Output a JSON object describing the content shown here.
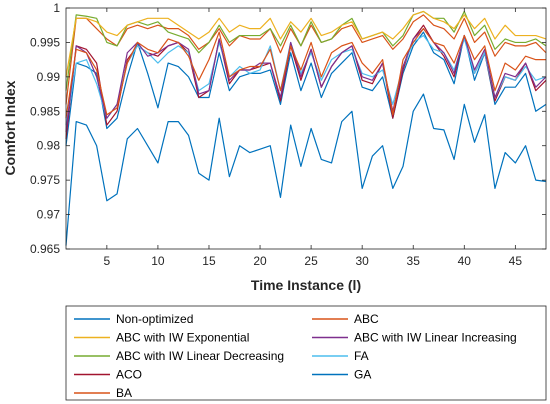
{
  "chart_data": {
    "type": "line",
    "title": "",
    "xlabel": "Time Instance (l)",
    "ylabel": "Comfort Index",
    "xlim": [
      1,
      48
    ],
    "ylim": [
      0.965,
      1
    ],
    "xticks": [
      5,
      10,
      15,
      20,
      25,
      30,
      35,
      40,
      45
    ],
    "yticks": [
      0.965,
      0.97,
      0.975,
      0.98,
      0.985,
      0.99,
      0.995,
      1
    ],
    "ytick_labels": [
      "0.965",
      "0.97",
      "0.975",
      "0.98",
      "0.985",
      "0.99",
      "0.995",
      "1"
    ],
    "grid": false,
    "legend_position": "below plot, two columns",
    "x": [
      1,
      2,
      3,
      4,
      5,
      6,
      7,
      8,
      9,
      10,
      11,
      12,
      13,
      14,
      15,
      16,
      17,
      18,
      19,
      20,
      21,
      22,
      23,
      24,
      25,
      26,
      27,
      28,
      29,
      30,
      31,
      32,
      33,
      34,
      35,
      36,
      37,
      38,
      39,
      40,
      41,
      42,
      43,
      44,
      45,
      46,
      47,
      48
    ],
    "series": [
      {
        "name": "Non-optimized",
        "color": "#0072BD",
        "values": [
          0.9655,
          0.9835,
          0.983,
          0.98,
          0.972,
          0.973,
          0.981,
          0.9825,
          0.98,
          0.9775,
          0.9835,
          0.9835,
          0.9815,
          0.976,
          0.975,
          0.984,
          0.9755,
          0.98,
          0.979,
          0.9795,
          0.98,
          0.9725,
          0.983,
          0.977,
          0.9825,
          0.978,
          0.9775,
          0.9835,
          0.985,
          0.9738,
          0.9785,
          0.98,
          0.9738,
          0.977,
          0.985,
          0.9875,
          0.9825,
          0.9823,
          0.978,
          0.986,
          0.9805,
          0.9845,
          0.9738,
          0.979,
          0.9775,
          0.98,
          0.975,
          0.9748
        ]
      },
      {
        "name": "ABC",
        "color": "#D95319",
        "values": [
          0.984,
          0.994,
          0.9935,
          0.991,
          0.9845,
          0.9855,
          0.992,
          0.995,
          0.994,
          0.9935,
          0.9955,
          0.995,
          0.993,
          0.9895,
          0.9925,
          0.9965,
          0.99,
          0.991,
          0.9915,
          0.9915,
          0.994,
          0.988,
          0.9945,
          0.991,
          0.995,
          0.99,
          0.9935,
          0.9945,
          0.995,
          0.992,
          0.9905,
          0.9925,
          0.9845,
          0.9925,
          0.995,
          0.997,
          0.995,
          0.9945,
          0.992,
          0.996,
          0.9925,
          0.9945,
          0.988,
          0.992,
          0.991,
          0.993,
          0.9925,
          0.9925
        ]
      },
      {
        "name": "ABC with IW Exponential",
        "color": "#EDB120",
        "values": [
          0.99,
          0.9985,
          0.9985,
          0.998,
          0.9965,
          0.996,
          0.9975,
          0.998,
          0.9985,
          0.9985,
          0.9985,
          0.9975,
          0.9965,
          0.9955,
          0.9965,
          0.9985,
          0.9965,
          0.9975,
          0.997,
          0.997,
          0.9985,
          0.9955,
          0.998,
          0.9965,
          0.9985,
          0.996,
          0.9965,
          0.9975,
          0.998,
          0.9955,
          0.996,
          0.9965,
          0.9955,
          0.997,
          0.999,
          0.9995,
          0.9985,
          0.998,
          0.997,
          0.999,
          0.997,
          0.9985,
          0.9955,
          0.9975,
          0.996,
          0.996,
          0.996,
          0.9955
        ]
      },
      {
        "name": "ABC with IW Linear Increasing",
        "color": "#7E2F8E",
        "values": [
          0.982,
          0.9945,
          0.9935,
          0.99,
          0.984,
          0.986,
          0.9935,
          0.995,
          0.993,
          0.9935,
          0.9945,
          0.995,
          0.994,
          0.9875,
          0.988,
          0.9955,
          0.9895,
          0.991,
          0.991,
          0.992,
          0.992,
          0.987,
          0.995,
          0.99,
          0.994,
          0.9885,
          0.9915,
          0.9935,
          0.9945,
          0.99,
          0.9895,
          0.992,
          0.985,
          0.9915,
          0.9955,
          0.997,
          0.995,
          0.9935,
          0.9905,
          0.996,
          0.991,
          0.994,
          0.987,
          0.9905,
          0.99,
          0.992,
          0.9885,
          0.99
        ]
      },
      {
        "name": "ABC with IW Linear Decreasing",
        "color": "#77AC30",
        "values": [
          0.988,
          0.999,
          0.9988,
          0.9985,
          0.995,
          0.9945,
          0.9975,
          0.998,
          0.9975,
          0.998,
          0.9965,
          0.996,
          0.9955,
          0.9935,
          0.995,
          0.9975,
          0.995,
          0.996,
          0.996,
          0.996,
          0.997,
          0.9945,
          0.9975,
          0.9945,
          0.998,
          0.995,
          0.9955,
          0.9975,
          0.9985,
          0.9955,
          0.996,
          0.9965,
          0.9945,
          0.996,
          0.999,
          0.9995,
          0.9985,
          0.9985,
          0.9965,
          0.9995,
          0.996,
          0.9975,
          0.994,
          0.9955,
          0.995,
          0.995,
          0.9955,
          0.9945
        ]
      },
      {
        "name": "FA",
        "color": "#4DBEEE",
        "values": [
          0.983,
          0.992,
          0.9925,
          0.989,
          0.984,
          0.986,
          0.992,
          0.9945,
          0.9935,
          0.992,
          0.9935,
          0.9945,
          0.9935,
          0.988,
          0.989,
          0.995,
          0.99,
          0.9915,
          0.9905,
          0.991,
          0.9945,
          0.988,
          0.995,
          0.9905,
          0.9935,
          0.9895,
          0.9925,
          0.9935,
          0.994,
          0.9905,
          0.99,
          0.991,
          0.986,
          0.9915,
          0.995,
          0.996,
          0.994,
          0.9935,
          0.991,
          0.9955,
          0.9905,
          0.9935,
          0.987,
          0.99,
          0.9895,
          0.9915,
          0.9895,
          0.99
        ]
      },
      {
        "name": "ACO",
        "color": "#A2142F",
        "values": [
          0.981,
          0.9945,
          0.994,
          0.992,
          0.983,
          0.985,
          0.9925,
          0.9945,
          0.9935,
          0.993,
          0.9945,
          0.995,
          0.9935,
          0.987,
          0.988,
          0.9955,
          0.989,
          0.991,
          0.991,
          0.9915,
          0.992,
          0.9865,
          0.9945,
          0.9895,
          0.994,
          0.9885,
          0.9915,
          0.9935,
          0.9945,
          0.9895,
          0.989,
          0.992,
          0.984,
          0.991,
          0.9955,
          0.9975,
          0.995,
          0.993,
          0.99,
          0.996,
          0.9905,
          0.9935,
          0.9865,
          0.99,
          0.9895,
          0.992,
          0.988,
          0.9895
        ]
      },
      {
        "name": "GA",
        "color": "#0072BD",
        "values": [
          0.98,
          0.992,
          0.9915,
          0.9905,
          0.9825,
          0.984,
          0.99,
          0.995,
          0.9905,
          0.9855,
          0.992,
          0.9915,
          0.99,
          0.987,
          0.987,
          0.9935,
          0.988,
          0.99,
          0.9905,
          0.9905,
          0.991,
          0.986,
          0.9935,
          0.988,
          0.992,
          0.987,
          0.9905,
          0.992,
          0.9935,
          0.9885,
          0.988,
          0.99,
          0.984,
          0.9905,
          0.9945,
          0.9965,
          0.9935,
          0.9925,
          0.989,
          0.996,
          0.9895,
          0.9935,
          0.986,
          0.9885,
          0.9885,
          0.9905,
          0.985,
          0.986
        ]
      },
      {
        "name": "BA",
        "color": "#D95319",
        "values": [
          0.986,
          0.9985,
          0.9985,
          0.997,
          0.9955,
          0.9945,
          0.997,
          0.9975,
          0.997,
          0.9975,
          0.997,
          0.997,
          0.996,
          0.994,
          0.995,
          0.997,
          0.9945,
          0.996,
          0.9955,
          0.9955,
          0.997,
          0.9935,
          0.997,
          0.9945,
          0.9975,
          0.995,
          0.9955,
          0.997,
          0.9975,
          0.995,
          0.9955,
          0.996,
          0.994,
          0.9955,
          0.998,
          0.999,
          0.9975,
          0.997,
          0.9955,
          0.9985,
          0.995,
          0.9965,
          0.993,
          0.995,
          0.9945,
          0.9945,
          0.995,
          0.9935
        ]
      }
    ]
  },
  "legend": {
    "items": [
      {
        "label": "Non-optimized",
        "color": "#0072BD"
      },
      {
        "label": "ABC",
        "color": "#D95319"
      },
      {
        "label": "ABC with IW Exponential",
        "color": "#EDB120"
      },
      {
        "label": "ABC with IW Linear Increasing",
        "color": "#7E2F8E"
      },
      {
        "label": "ABC with IW Linear Decreasing",
        "color": "#77AC30"
      },
      {
        "label": "FA",
        "color": "#4DBEEE"
      },
      {
        "label": "ACO",
        "color": "#A2142F"
      },
      {
        "label": "GA",
        "color": "#0072BD"
      },
      {
        "label": "BA",
        "color": "#D95319"
      }
    ]
  }
}
